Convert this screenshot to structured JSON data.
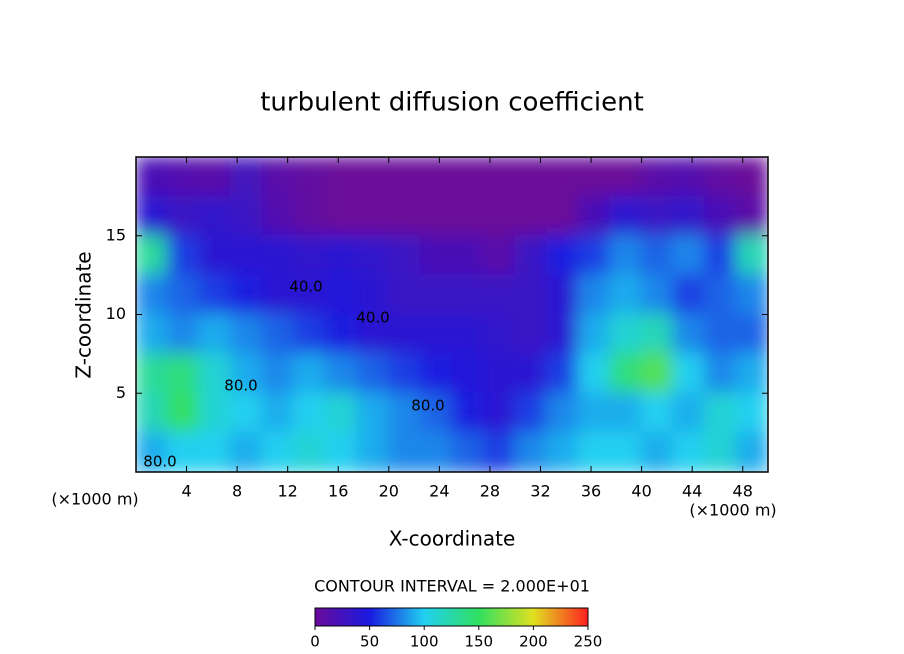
{
  "chart_data": {
    "type": "heatmap",
    "title": "turbulent diffusion coefficient",
    "xlabel": "X-coordinate",
    "ylabel": "Z-coordinate",
    "xunit": "(×1000 m)",
    "yunit": "(×1000 m)",
    "xlim": [
      0,
      50
    ],
    "ylim": [
      0,
      20
    ],
    "xticks": [
      4,
      8,
      12,
      16,
      20,
      24,
      28,
      32,
      36,
      40,
      44,
      48
    ],
    "yticks": [
      5,
      10,
      15
    ],
    "z": [
      [
        20,
        15,
        10,
        25,
        10,
        5,
        0,
        0,
        0,
        0,
        0,
        0,
        0,
        0,
        0,
        0,
        10,
        15,
        5,
        0
      ],
      [
        40,
        30,
        35,
        30,
        15,
        5,
        0,
        0,
        0,
        0,
        0,
        0,
        0,
        0,
        20,
        40,
        30,
        35,
        20,
        10
      ],
      [
        130,
        60,
        40,
        40,
        40,
        35,
        40,
        35,
        30,
        20,
        20,
        10,
        30,
        50,
        60,
        80,
        70,
        80,
        60,
        120
      ],
      [
        80,
        70,
        60,
        50,
        40,
        40,
        45,
        40,
        30,
        30,
        30,
        30,
        30,
        40,
        80,
        90,
        80,
        60,
        70,
        80
      ],
      [
        90,
        80,
        90,
        80,
        70,
        60,
        50,
        40,
        40,
        40,
        40,
        35,
        30,
        40,
        90,
        110,
        120,
        80,
        70,
        70
      ],
      [
        130,
        140,
        110,
        90,
        80,
        90,
        80,
        70,
        60,
        50,
        45,
        40,
        40,
        60,
        100,
        140,
        160,
        100,
        80,
        90
      ],
      [
        120,
        150,
        110,
        100,
        90,
        100,
        110,
        90,
        80,
        70,
        50,
        40,
        60,
        80,
        90,
        90,
        100,
        90,
        110,
        100
      ],
      [
        90,
        100,
        100,
        90,
        100,
        110,
        100,
        90,
        80,
        80,
        70,
        60,
        80,
        90,
        100,
        100,
        90,
        100,
        110,
        90
      ]
    ],
    "contour_labels": [
      "40.0",
      "40.0",
      "80.0",
      "80.0",
      "80.0"
    ],
    "colorbar": {
      "label": "CONTOUR INTERVAL = 2.000E+01",
      "lim": [
        0,
        250
      ],
      "ticks": [
        0,
        50,
        100,
        150,
        200,
        250
      ],
      "colormap": [
        "#6a0a9a",
        "#1a1ae0",
        "#20d0f0",
        "#30e060",
        "#e0e020",
        "#ff2020"
      ]
    }
  }
}
